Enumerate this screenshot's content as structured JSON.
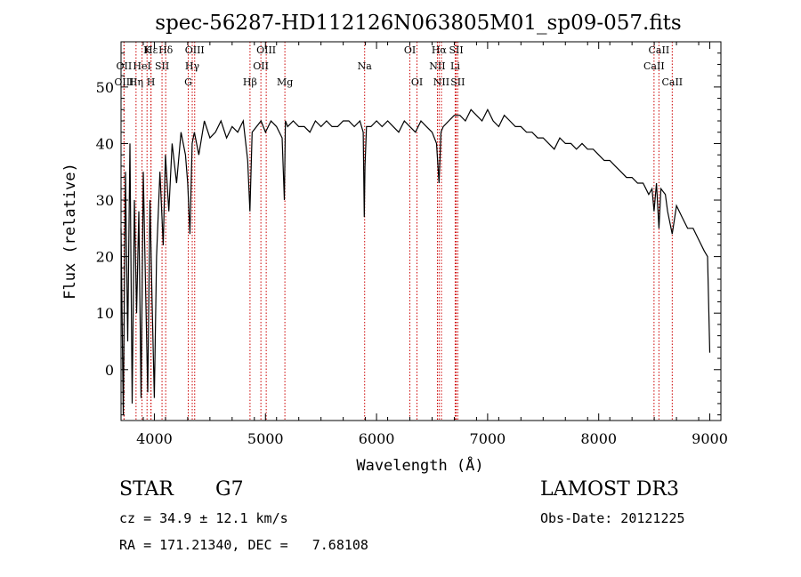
{
  "chart_data": {
    "type": "line",
    "title": "spec-56287-HD112126N063805M01_sp09-057.fits",
    "xlabel": "Wavelength (Å)",
    "ylabel": "Flux (relative)",
    "xlim": [
      3700,
      9100
    ],
    "ylim": [
      -9,
      58
    ],
    "xticks": [
      4000,
      5000,
      6000,
      7000,
      8000,
      9000
    ],
    "yticks": [
      0,
      10,
      20,
      30,
      40,
      50
    ],
    "grid": false,
    "series": [
      {
        "color": "#000000",
        "x": [
          3700,
          3720,
          3740,
          3760,
          3780,
          3800,
          3820,
          3840,
          3860,
          3880,
          3900,
          3920,
          3940,
          3960,
          3980,
          4000,
          4020,
          4050,
          4080,
          4100,
          4130,
          4160,
          4200,
          4240,
          4280,
          4300,
          4320,
          4340,
          4360,
          4400,
          4450,
          4500,
          4550,
          4600,
          4650,
          4700,
          4750,
          4800,
          4840,
          4860,
          4880,
          4920,
          4960,
          5000,
          5050,
          5100,
          5150,
          5170,
          5180,
          5200,
          5250,
          5300,
          5350,
          5400,
          5450,
          5500,
          5550,
          5600,
          5650,
          5700,
          5750,
          5800,
          5850,
          5880,
          5890,
          5896,
          5910,
          5950,
          6000,
          6050,
          6100,
          6150,
          6200,
          6250,
          6300,
          6350,
          6400,
          6450,
          6500,
          6540,
          6563,
          6580,
          6600,
          6650,
          6700,
          6750,
          6800,
          6850,
          6900,
          6950,
          7000,
          7050,
          7100,
          7150,
          7200,
          7250,
          7300,
          7350,
          7400,
          7450,
          7500,
          7550,
          7600,
          7650,
          7700,
          7750,
          7800,
          7850,
          7900,
          7950,
          8000,
          8050,
          8100,
          8150,
          8200,
          8250,
          8300,
          8350,
          8400,
          8450,
          8480,
          8498,
          8520,
          8542,
          8560,
          8600,
          8620,
          8662,
          8700,
          8750,
          8800,
          8850,
          8900,
          8950,
          8980,
          9000
        ],
        "y": [
          25,
          -8,
          35,
          5,
          40,
          -6,
          30,
          10,
          28,
          -5,
          35,
          15,
          -4,
          30,
          12,
          -5,
          20,
          35,
          22,
          38,
          28,
          40,
          33,
          42,
          38,
          33,
          24,
          40,
          42,
          38,
          44,
          41,
          42,
          44,
          41,
          43,
          42,
          44,
          37,
          28,
          42,
          43,
          44,
          42,
          44,
          43,
          41,
          30,
          44,
          43,
          44,
          43,
          43,
          42,
          44,
          43,
          44,
          43,
          43,
          44,
          44,
          43,
          44,
          42,
          27,
          36,
          43,
          43,
          44,
          43,
          44,
          43,
          42,
          44,
          43,
          42,
          44,
          43,
          42,
          40,
          33,
          42,
          43,
          44,
          45,
          45,
          44,
          46,
          45,
          44,
          46,
          44,
          43,
          45,
          44,
          43,
          43,
          42,
          42,
          41,
          41,
          40,
          39,
          41,
          40,
          40,
          39,
          40,
          39,
          39,
          38,
          37,
          37,
          36,
          35,
          34,
          34,
          33,
          33,
          31,
          32,
          28,
          33,
          25,
          32,
          31,
          28,
          24,
          29,
          27,
          25,
          25,
          23,
          21,
          20,
          3
        ]
      }
    ],
    "lines": [
      {
        "label": "Hε",
        "x": 3970,
        "tier": 0
      },
      {
        "label": "K",
        "x": 3934,
        "tier": 0
      },
      {
        "label": "Hδ",
        "x": 4102,
        "tier": 0
      },
      {
        "label": "OII",
        "x": 3727,
        "tier": 1
      },
      {
        "label": "HeI",
        "x": 3889,
        "tier": 1
      },
      {
        "label": "SII",
        "x": 4069,
        "tier": 1
      },
      {
        "label": "OIII",
        "x": 3727,
        "tier": 2
      },
      {
        "label": "Hη",
        "x": 3835,
        "tier": 2
      },
      {
        "label": "H",
        "x": 3969,
        "tier": 2
      },
      {
        "label": "OIII",
        "x": 4363,
        "tier": 0
      },
      {
        "label": "Hγ",
        "x": 4341,
        "tier": 1
      },
      {
        "label": "G",
        "x": 4305,
        "tier": 2
      },
      {
        "label": "Hβ",
        "x": 4861,
        "tier": 2
      },
      {
        "label": "OIII",
        "x": 5007,
        "tier": 0
      },
      {
        "label": "OII",
        "x": 4959,
        "tier": 1
      },
      {
        "label": "Mg",
        "x": 5175,
        "tier": 2
      },
      {
        "label": "Na",
        "x": 5893,
        "tier": 1
      },
      {
        "label": "OI",
        "x": 6300,
        "tier": 0
      },
      {
        "label": "OI",
        "x": 6364,
        "tier": 2
      },
      {
        "label": "Hα",
        "x": 6563,
        "tier": 0
      },
      {
        "label": "SII",
        "x": 6717,
        "tier": 0
      },
      {
        "label": "NII",
        "x": 6548,
        "tier": 1
      },
      {
        "label": "Li",
        "x": 6708,
        "tier": 1
      },
      {
        "label": "NII",
        "x": 6584,
        "tier": 2
      },
      {
        "label": "SII",
        "x": 6731,
        "tier": 2
      },
      {
        "label": "CaII",
        "x": 8542,
        "tier": 0
      },
      {
        "label": "CaII",
        "x": 8498,
        "tier": 1
      },
      {
        "label": "CaII",
        "x": 8662,
        "tier": 2
      }
    ],
    "line_color": "#cc0000"
  },
  "info": {
    "class_label": "STAR",
    "subclass": "G7",
    "survey": "LAMOST DR3",
    "cz": "cz = 34.9 ± 12.1 km/s",
    "obs_date": "Obs-Date: 20121225",
    "coords": "RA = 171.21340, DEC =   7.68108"
  }
}
